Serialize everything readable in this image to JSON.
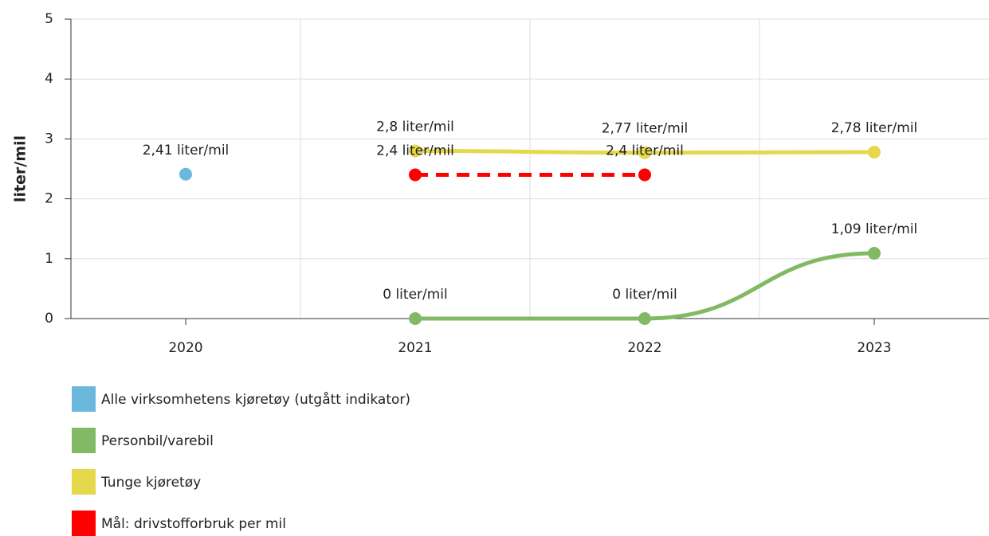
{
  "chart_data": {
    "type": "line",
    "ylabel": "liter/mil",
    "categories": [
      "2020",
      "2021",
      "2022",
      "2023"
    ],
    "series": [
      {
        "name": "Alle virksomhetens kjøretøy (utgått indikator)",
        "color": "#6cb8dc",
        "values": [
          2.41,
          null,
          null,
          null
        ],
        "value_labels": [
          "2,41 liter/mil",
          null,
          null,
          null
        ]
      },
      {
        "name": "Personbil/varebil",
        "color": "#82b964",
        "values": [
          null,
          0,
          0,
          1.09
        ],
        "value_labels": [
          null,
          "0 liter/mil",
          "0 liter/mil",
          "1,09 liter/mil"
        ]
      },
      {
        "name": "Tunge kjøretøy",
        "color": "#e5d84a",
        "values": [
          null,
          2.8,
          2.77,
          2.78
        ],
        "value_labels": [
          null,
          "2,8 liter/mil",
          "2,77 liter/mil",
          "2,78 liter/mil"
        ]
      },
      {
        "name": "Mål: drivstofforbruk per mil",
        "color": "#ff0000",
        "dashed": true,
        "values": [
          null,
          2.4,
          2.4,
          null
        ],
        "value_labels": [
          null,
          "2,4 liter/mil",
          "2,4 liter/mil",
          null
        ]
      }
    ],
    "ylim": [
      0,
      5
    ],
    "yticks": [
      0,
      1,
      2,
      3,
      4,
      5
    ],
    "grid": true,
    "legend": "bottom"
  }
}
